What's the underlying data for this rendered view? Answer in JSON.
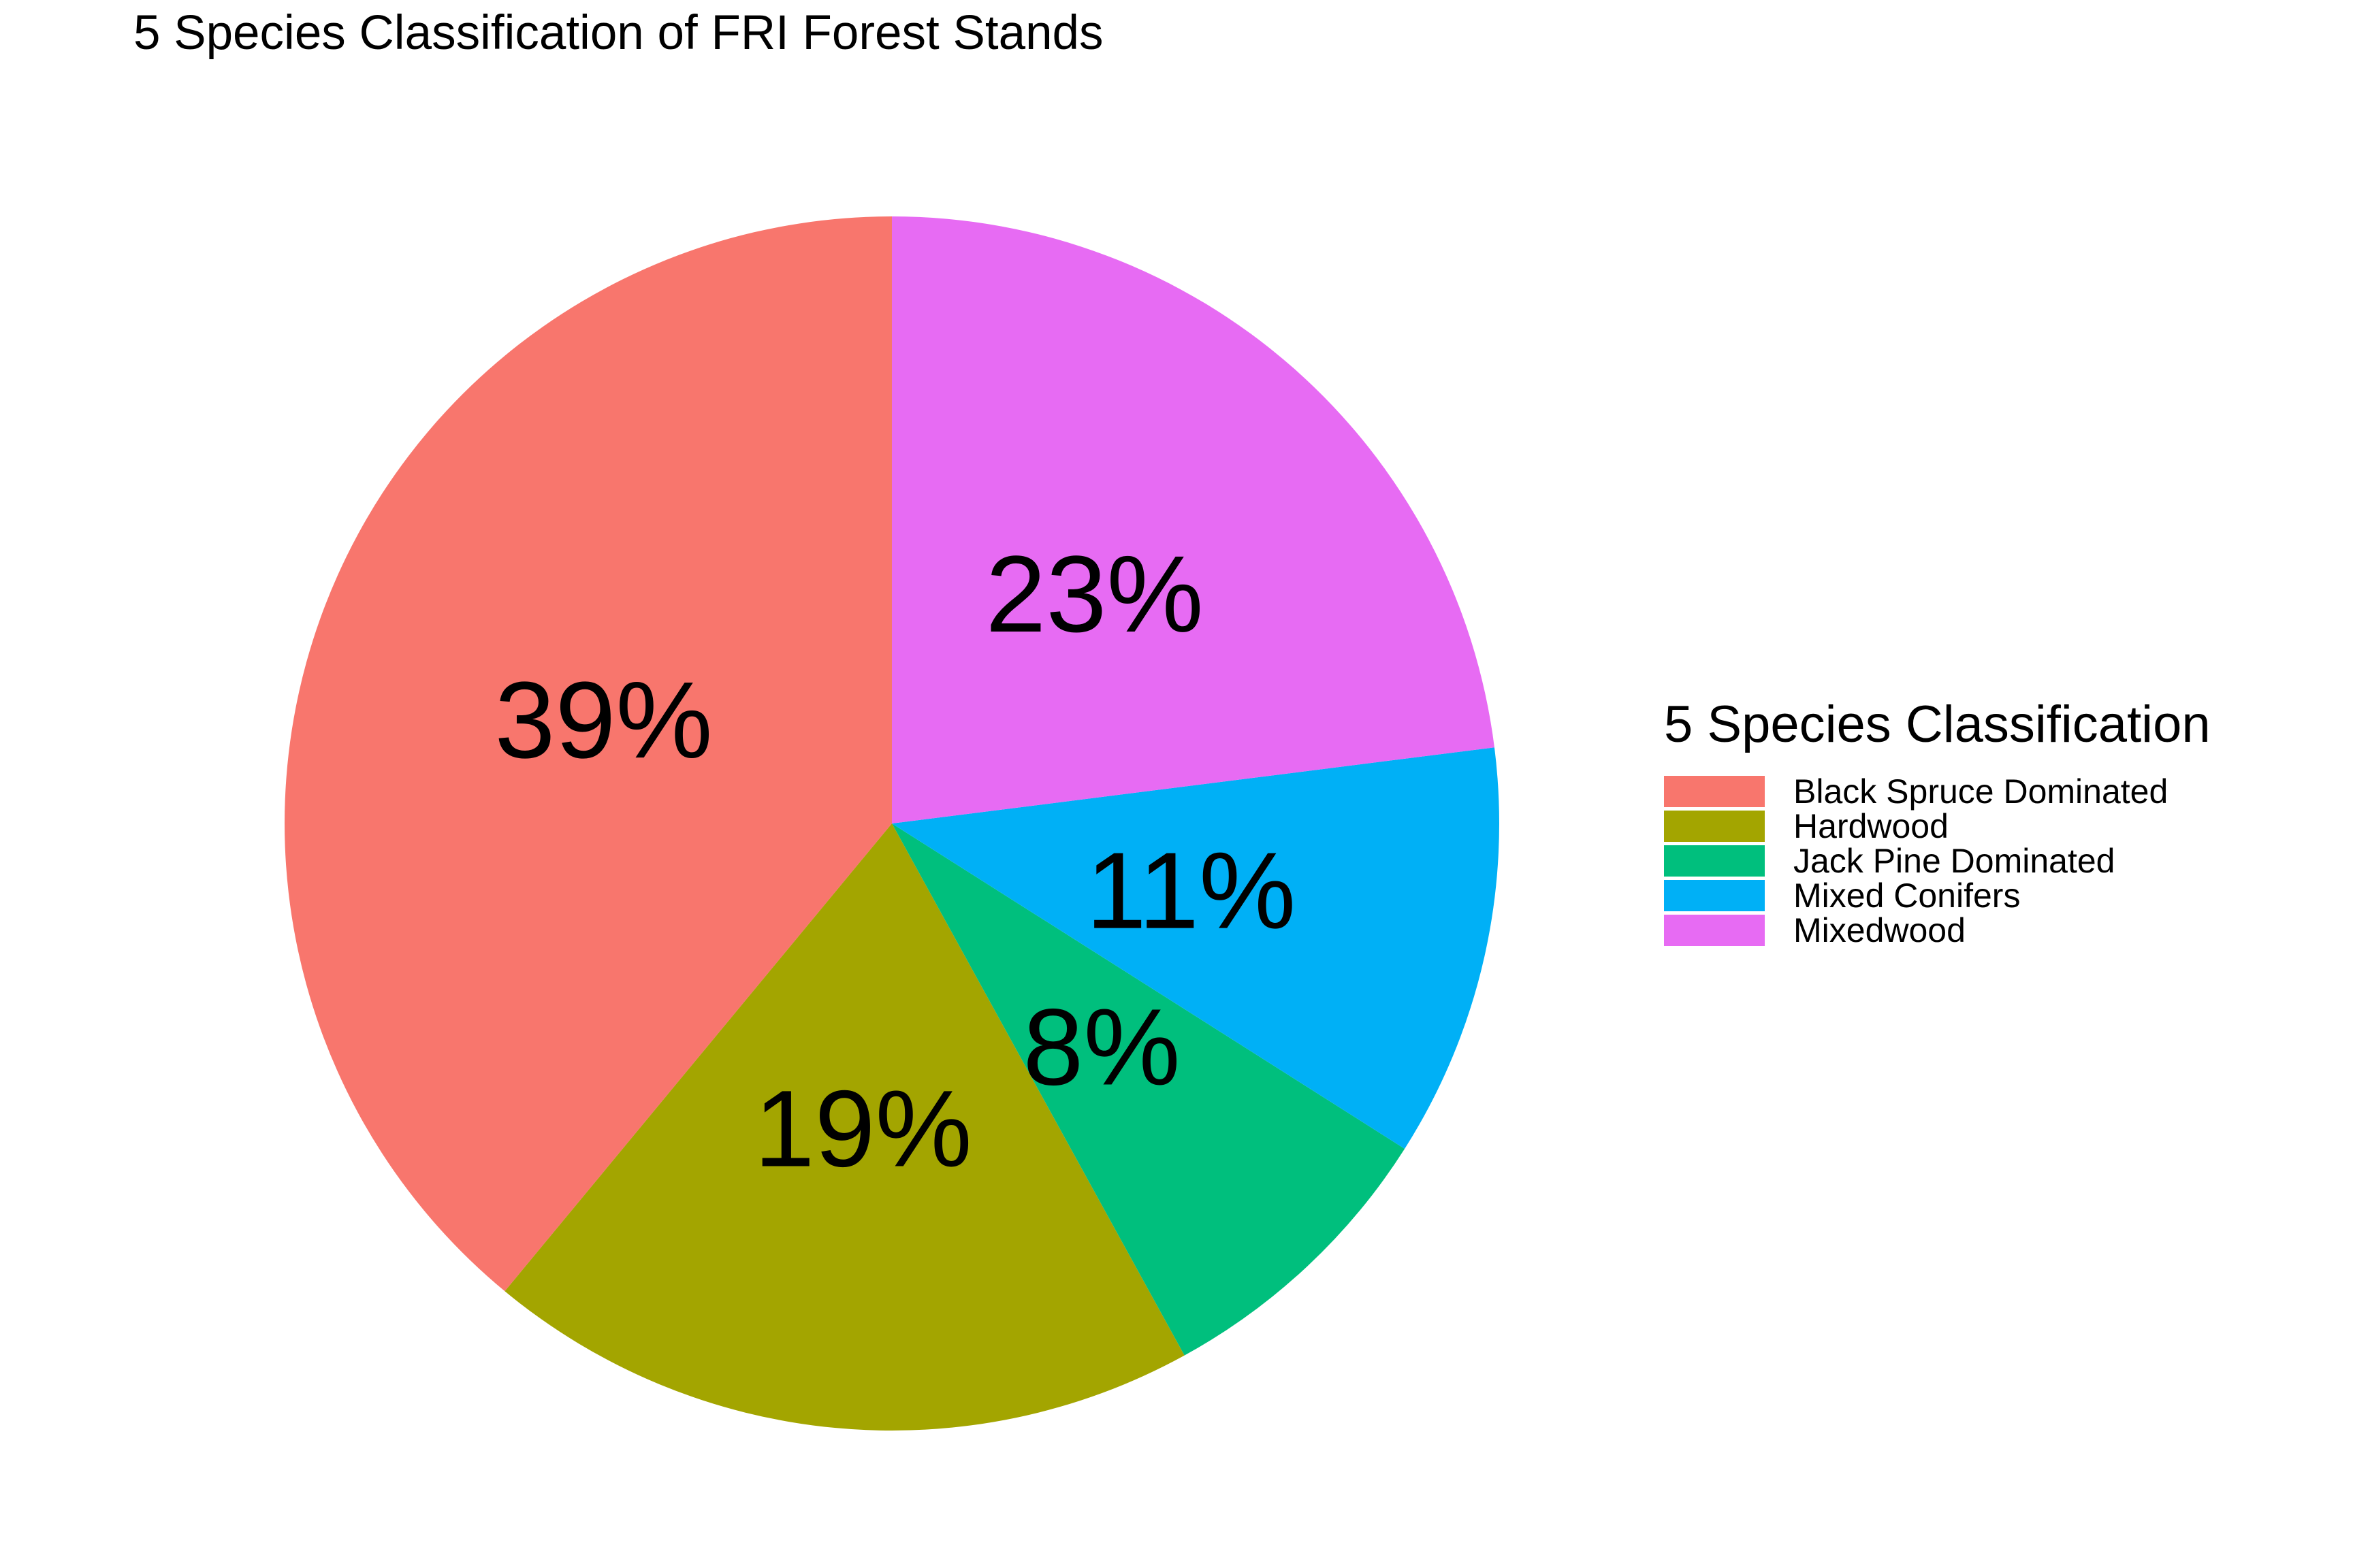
{
  "chart_data": {
    "type": "pie",
    "title": "5 Species Classification of FRI Forest Stands",
    "legend_title": "5 Species Classification",
    "legend_position": "right",
    "start": "top",
    "direction": "counterclockwise",
    "categories": [
      "Black Spruce Dominated",
      "Hardwood",
      "Jack Pine Dominated",
      "Mixed Conifers",
      "Mixedwood"
    ],
    "values": [
      39,
      19,
      8,
      11,
      23
    ],
    "labels": [
      "39%",
      "19%",
      "8%",
      "11%",
      "23%"
    ],
    "colors": [
      "#F8766D",
      "#A3A500",
      "#00BF7D",
      "#00B0F6",
      "#E76BF3"
    ]
  }
}
